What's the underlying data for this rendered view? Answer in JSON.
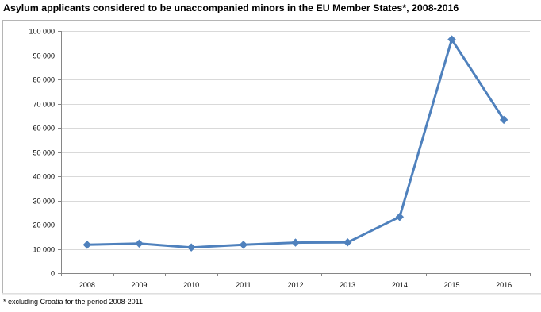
{
  "chart_data": {
    "type": "line",
    "title": "Asylum applicants considered to be unaccompanied minors in the EU Member States*, 2008-2016",
    "xlabel": "",
    "ylabel": "",
    "categories": [
      "2008",
      "2009",
      "2010",
      "2011",
      "2012",
      "2013",
      "2014",
      "2015",
      "2016"
    ],
    "series": [
      {
        "values": [
          11700,
          12200,
          10600,
          11700,
          12600,
          12700,
          23200,
          96500,
          63300
        ],
        "color": "#4f81bd"
      }
    ],
    "ylim": [
      0,
      100000
    ],
    "yticks": [
      0,
      10000,
      20000,
      30000,
      40000,
      50000,
      60000,
      70000,
      80000,
      90000,
      100000
    ],
    "ytick_labels": [
      "0",
      "10 000",
      "20 000",
      "30 000",
      "40 000",
      "50 000",
      "60 000",
      "70 000",
      "80 000",
      "90 000",
      "100 000"
    ],
    "grid": true,
    "legend": "none",
    "marker": "diamond"
  },
  "footnote": "* excluding Croatia for the period 2008-2011",
  "colors": {
    "line": "#4f81bd",
    "gridline": "#d9d9d9",
    "axis": "#868686"
  }
}
